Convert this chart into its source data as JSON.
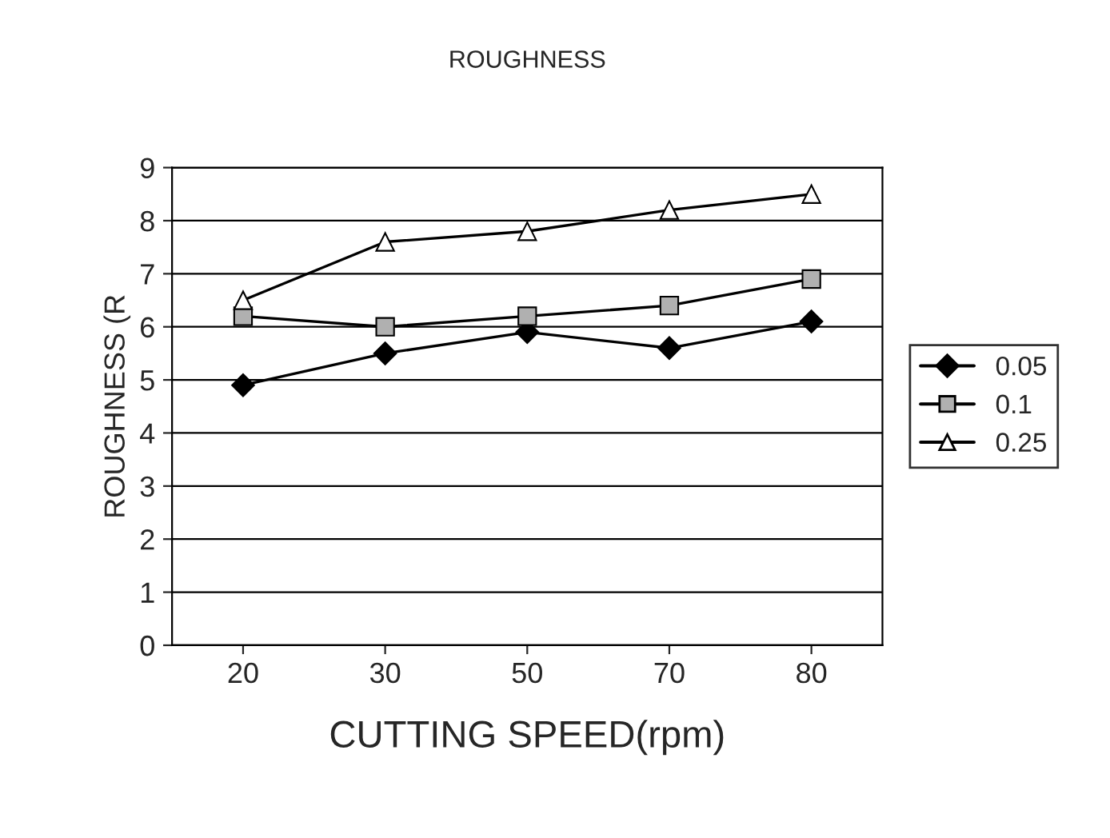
{
  "chart_data": {
    "type": "line",
    "title": "ROUGHNESS",
    "xlabel": "CUTTING SPEED(rpm)",
    "ylabel": "ROUGHNESS (R",
    "categories": [
      "20",
      "30",
      "50",
      "70",
      "80"
    ],
    "series": [
      {
        "name": "0.05",
        "color": "#000000",
        "marker": "diamond",
        "values": [
          4.9,
          5.5,
          5.9,
          5.6,
          6.1
        ]
      },
      {
        "name": "0.1",
        "color": "#000000",
        "marker": "square",
        "values": [
          6.2,
          6.0,
          6.2,
          6.4,
          6.9
        ]
      },
      {
        "name": "0.25",
        "color": "#000000",
        "marker": "triangle",
        "values": [
          6.5,
          7.6,
          7.8,
          8.2,
          8.5
        ]
      }
    ],
    "ylim": [
      0,
      9
    ],
    "yticks": [
      0,
      1,
      2,
      3,
      4,
      5,
      6,
      7,
      8,
      9
    ],
    "grid": "y",
    "legend": "right",
    "line_style": "solid"
  }
}
